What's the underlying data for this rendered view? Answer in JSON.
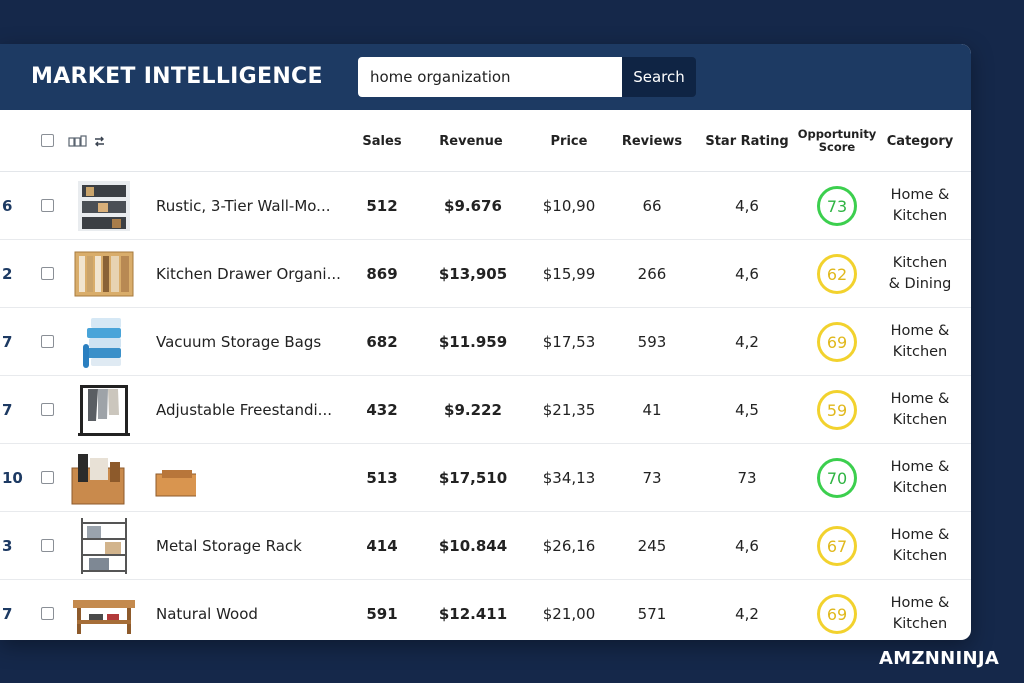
{
  "app": {
    "title": "MARKET INTELLIGENCE",
    "brand": "AMZNNINJA"
  },
  "search": {
    "value": "home organization",
    "button_label": "Search"
  },
  "table": {
    "headers": {
      "sales": "Sales",
      "revenue": "Revenue",
      "price": "Price",
      "reviews": "Reviews",
      "star_rating": "Star Rating",
      "opportunity_score_line1": "Opportunity",
      "opportunity_score_line2": "Score",
      "category": "Category"
    },
    "rows": [
      {
        "rank": "6",
        "thumb": "wall-organizer-image",
        "name": "Rustic, 3-Tier Wall-Mo...",
        "sales": "512",
        "revenue": "$9.676",
        "price": "$10,90",
        "reviews": "66",
        "rating": "4,6",
        "score": 73,
        "score_color": "green",
        "cat1": "Home &",
        "cat2": "Kitchen"
      },
      {
        "rank": "2",
        "thumb": "drawer-organizer-image",
        "name": "Kitchen Drawer Organi...",
        "sales": "869",
        "revenue": "$13,905",
        "price": "$15,99",
        "reviews": "266",
        "rating": "4,6",
        "score": 62,
        "score_color": "yellow",
        "cat1": "Kitchen",
        "cat2": "& Dining"
      },
      {
        "rank": "7",
        "thumb": "vacuum-bags-image",
        "name": "Vacuum Storage Bags",
        "sales": "682",
        "revenue": "$11.959",
        "price": "$17,53",
        "reviews": "593",
        "rating": "4,2",
        "score": 69,
        "score_color": "yellow",
        "cat1": "Home &",
        "cat2": "Kitchen"
      },
      {
        "rank": "7",
        "thumb": "clothing-rack-image",
        "name": "Adjustable Freestandi...",
        "sales": "432",
        "revenue": "$9.222",
        "price": "$21,35",
        "reviews": "41",
        "rating": "4,5",
        "score": 59,
        "score_color": "yellow",
        "cat1": "Home &",
        "cat2": "Kitchen"
      },
      {
        "rank": "10",
        "thumb": "desk-organizer-image",
        "name": "",
        "sales": "513",
        "revenue": "$17,510",
        "price": "$34,13",
        "reviews": "73",
        "rating": "73",
        "score": 70,
        "score_color": "green",
        "cat1": "Home &",
        "cat2": "Kitchen"
      },
      {
        "rank": "3",
        "thumb": "metal-rack-image",
        "name": "Metal Storage Rack",
        "sales": "414",
        "revenue": "$10.844",
        "price": "$26,16",
        "reviews": "245",
        "rating": "4,6",
        "score": 67,
        "score_color": "yellow",
        "cat1": "Home &",
        "cat2": "Kitchen"
      },
      {
        "rank": "7",
        "thumb": "wood-bench-image",
        "name": "Natural Wood",
        "sales": "591",
        "revenue": "$12.411",
        "price": "$21,00",
        "reviews": "571",
        "rating": "4,2",
        "score": 69,
        "score_color": "yellow",
        "cat1": "Home &",
        "cat2": "Kitchen"
      }
    ]
  },
  "colors": {
    "background": "#15284a",
    "header": "#1d3a63",
    "score_green": "#3ccf4e",
    "score_yellow": "#f2d22e"
  }
}
